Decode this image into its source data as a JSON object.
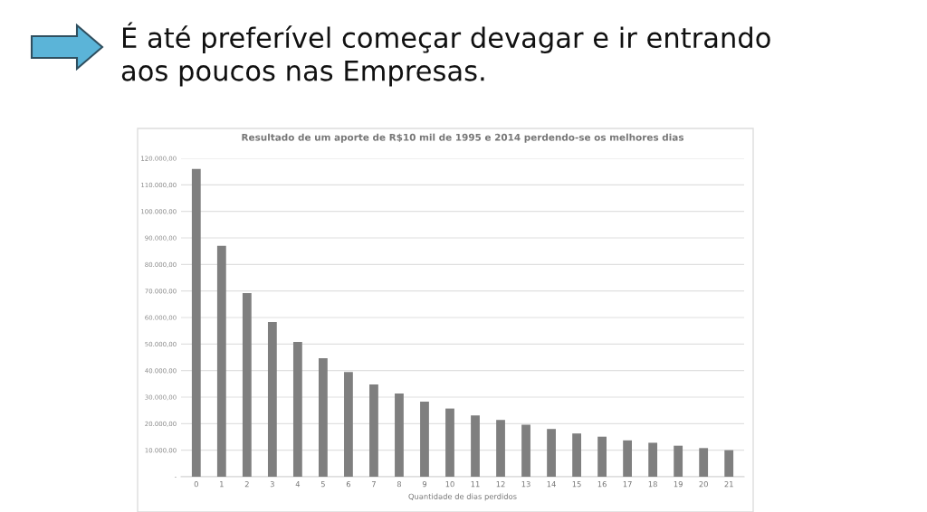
{
  "chart_data": {
    "type": "bar",
    "title": "É até preferível começar devagar e ir entrando\naos poucos nas Empresas.",
    "subtitle": "Resultado de um aporte de R$10 mil de 1995 e 2014 perdendo-se os melhores dias",
    "xlabel": "Quantidade de dias perdidos",
    "categories": [
      "0",
      "1",
      "2",
      "3",
      "4",
      "5",
      "6",
      "7",
      "8",
      "9",
      "10",
      "11",
      "12",
      "13",
      "14",
      "15",
      "16",
      "17",
      "18",
      "19",
      "20",
      "21"
    ],
    "values": [
      116000,
      87000,
      69200,
      58300,
      50800,
      44700,
      39500,
      34800,
      31400,
      28300,
      25700,
      23100,
      21400,
      19600,
      18000,
      16300,
      15100,
      13700,
      12800,
      11700,
      10800,
      10000
    ],
    "color": "#7f7f7f",
    "ylim": [
      0,
      120000
    ],
    "yticks": [
      {
        "value": 0,
        "label": "-"
      },
      {
        "value": 10000,
        "label": "10.000,00"
      },
      {
        "value": 20000,
        "label": "20.000,00"
      },
      {
        "value": 30000,
        "label": "30.000,00"
      },
      {
        "value": 40000,
        "label": "40.000,00"
      },
      {
        "value": 50000,
        "label": "50.000,00"
      },
      {
        "value": 60000,
        "label": "60.000,00"
      },
      {
        "value": 70000,
        "label": "70.000,00"
      },
      {
        "value": 80000,
        "label": "80.000,00"
      },
      {
        "value": 90000,
        "label": "90.000,00"
      },
      {
        "value": 100000,
        "label": "100.000,00"
      },
      {
        "value": 110000,
        "label": "110.000,00"
      },
      {
        "value": 120000,
        "label": "120.000,00"
      }
    ],
    "grid": "y"
  }
}
